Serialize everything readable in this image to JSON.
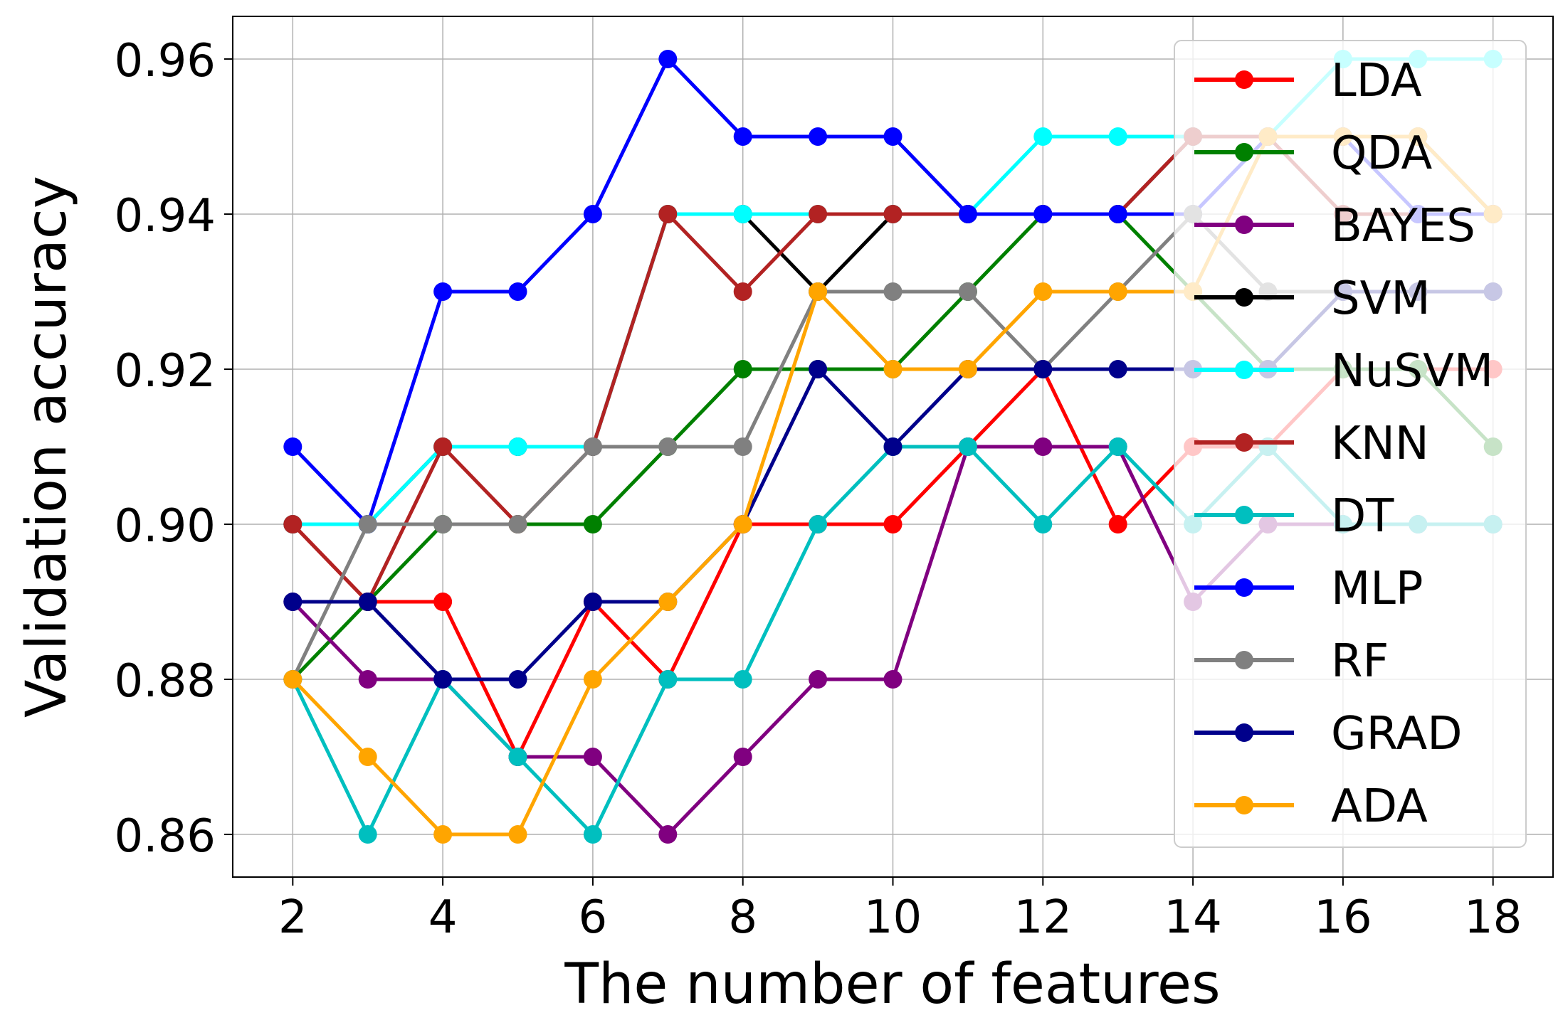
{
  "chart_data": {
    "type": "line",
    "title": "",
    "xlabel": "The number of features",
    "ylabel": "Validation accuracy",
    "xlim": [
      1.2,
      18.8
    ],
    "ylim": [
      0.8545,
      0.9655
    ],
    "xticks": [
      2,
      4,
      6,
      8,
      10,
      12,
      14,
      16,
      18
    ],
    "yticks": [
      0.86,
      0.88,
      0.9,
      0.92,
      0.94,
      0.96
    ],
    "xtick_labels": [
      "2",
      "4",
      "6",
      "8",
      "10",
      "12",
      "14",
      "16",
      "18"
    ],
    "ytick_labels": [
      "0.86",
      "0.88",
      "0.90",
      "0.92",
      "0.94",
      "0.96"
    ],
    "grid": true,
    "legend_position": "top-right",
    "x": [
      2,
      3,
      4,
      5,
      6,
      7,
      8,
      9,
      10,
      11,
      12,
      13,
      14,
      15,
      16,
      17,
      18
    ],
    "series": [
      {
        "name": "LDA",
        "color": "#ff0000",
        "values": [
          0.9,
          0.89,
          0.89,
          0.87,
          0.89,
          0.88,
          0.9,
          0.9,
          0.9,
          0.91,
          0.92,
          0.9,
          0.91,
          0.91,
          0.92,
          0.92,
          0.92
        ]
      },
      {
        "name": "QDA",
        "color": "#008000",
        "values": [
          0.88,
          0.89,
          0.9,
          0.9,
          0.9,
          0.91,
          0.92,
          0.92,
          0.92,
          0.93,
          0.94,
          0.94,
          0.93,
          0.92,
          0.92,
          0.92,
          0.91
        ]
      },
      {
        "name": "BAYES",
        "color": "#800080",
        "values": [
          0.89,
          0.88,
          0.88,
          0.87,
          0.87,
          0.86,
          0.87,
          0.88,
          0.88,
          0.91,
          0.91,
          0.91,
          0.89,
          0.9,
          0.9,
          0.9,
          0.9
        ]
      },
      {
        "name": "SVM",
        "color": "#000000",
        "values": [
          0.9,
          0.9,
          0.91,
          0.91,
          0.91,
          0.94,
          0.94,
          0.93,
          0.94,
          0.94,
          0.94,
          0.94,
          0.95,
          0.95,
          0.95,
          0.95,
          0.94
        ]
      },
      {
        "name": "NuSVM",
        "color": "#00ffff",
        "values": [
          0.9,
          0.9,
          0.91,
          0.91,
          0.91,
          0.94,
          0.94,
          0.94,
          0.94,
          0.94,
          0.95,
          0.95,
          0.95,
          0.95,
          0.96,
          0.96,
          0.96
        ]
      },
      {
        "name": "KNN",
        "color": "#b22222",
        "values": [
          0.9,
          0.89,
          0.91,
          0.9,
          0.91,
          0.94,
          0.93,
          0.94,
          0.94,
          0.94,
          0.94,
          0.94,
          0.95,
          0.95,
          0.94,
          0.94,
          0.94
        ]
      },
      {
        "name": "DT",
        "color": "#00bfbf",
        "values": [
          0.88,
          0.86,
          0.88,
          0.87,
          0.86,
          0.88,
          0.88,
          0.9,
          0.91,
          0.91,
          0.9,
          0.91,
          0.9,
          0.91,
          0.9,
          0.9,
          0.9
        ]
      },
      {
        "name": "MLP",
        "color": "#0000ff",
        "values": [
          0.91,
          0.9,
          0.93,
          0.93,
          0.94,
          0.96,
          0.95,
          0.95,
          0.95,
          0.94,
          0.94,
          0.94,
          0.94,
          0.95,
          0.95,
          0.94,
          0.94
        ]
      },
      {
        "name": "RF",
        "color": "#808080",
        "values": [
          0.88,
          0.9,
          0.9,
          0.9,
          0.91,
          0.91,
          0.91,
          0.93,
          0.93,
          0.93,
          0.92,
          0.93,
          0.94,
          0.93,
          0.93,
          0.93,
          0.93
        ]
      },
      {
        "name": "GRAD",
        "color": "#00008b",
        "values": [
          0.89,
          0.89,
          0.88,
          0.88,
          0.89,
          0.89,
          0.9,
          0.92,
          0.91,
          0.92,
          0.92,
          0.92,
          0.92,
          0.92,
          0.93,
          0.93,
          0.93
        ]
      },
      {
        "name": "ADA",
        "color": "#ffa500",
        "values": [
          0.88,
          0.87,
          0.86,
          0.86,
          0.88,
          0.89,
          0.9,
          0.93,
          0.92,
          0.92,
          0.93,
          0.93,
          0.93,
          0.95,
          0.95,
          0.95,
          0.94
        ]
      }
    ]
  }
}
